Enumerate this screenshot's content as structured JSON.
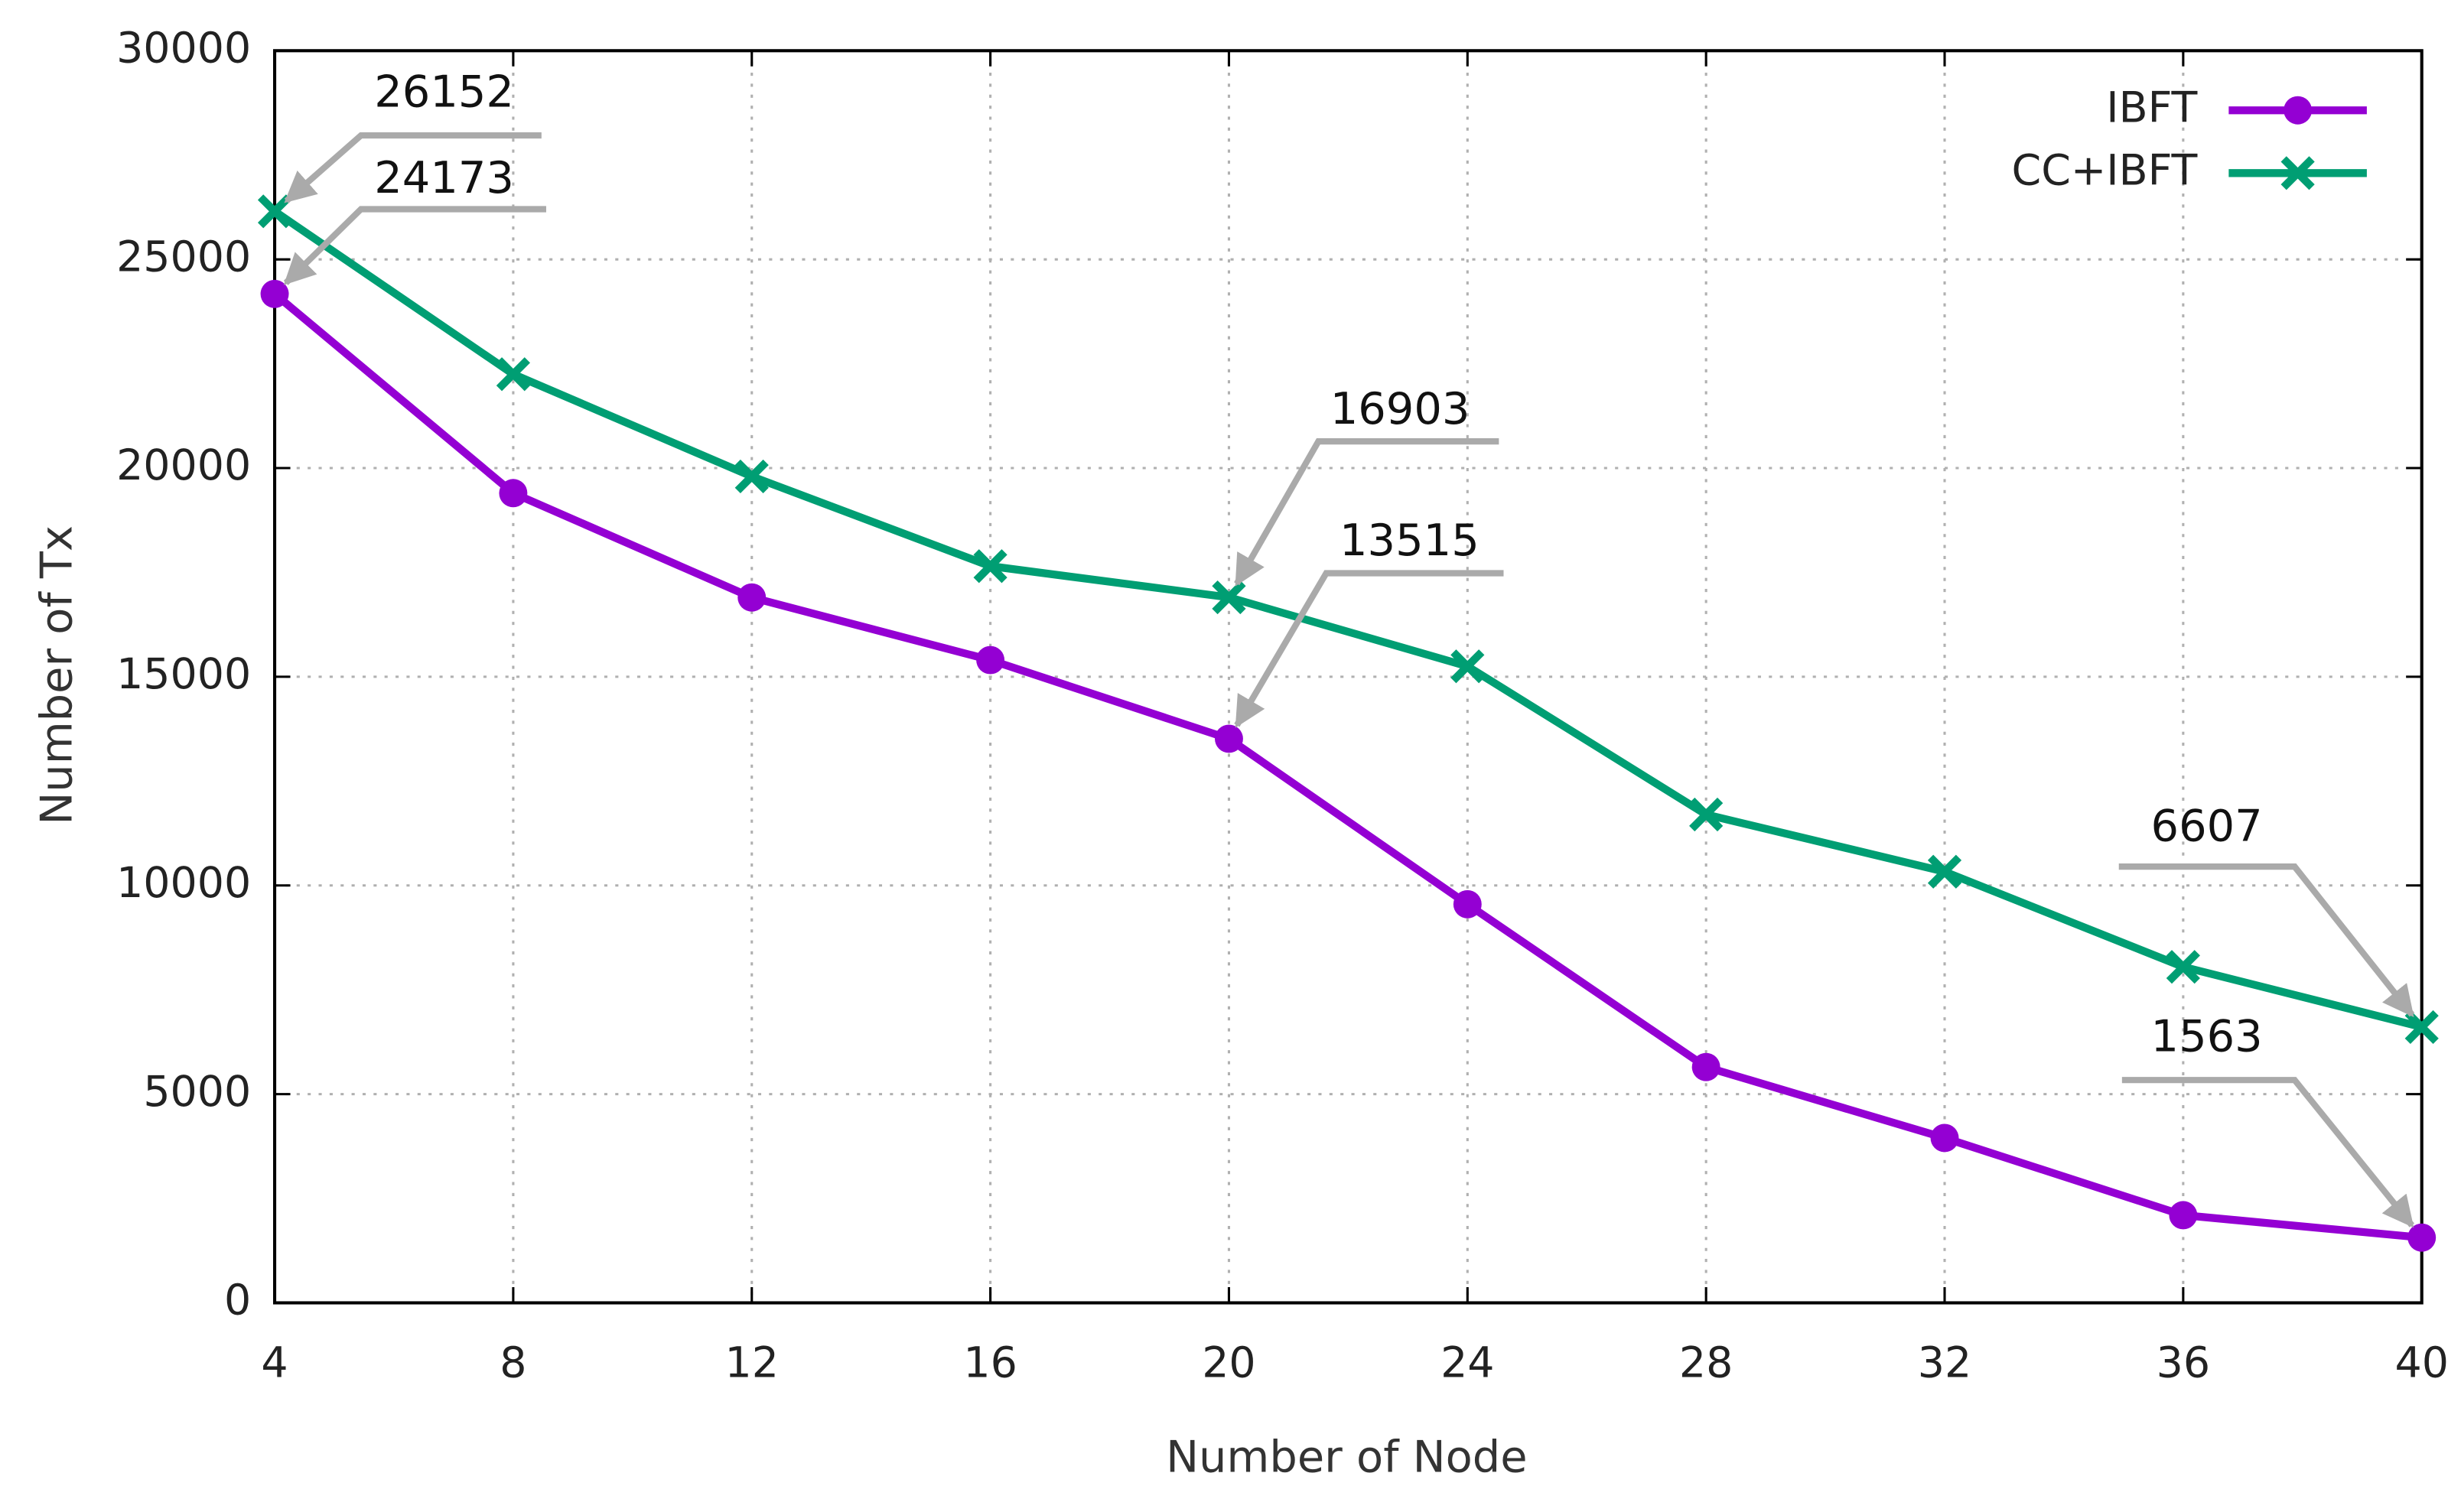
{
  "chart_data": {
    "type": "line",
    "x_label": "Number of Node",
    "y_label": "Number of Tx",
    "x": [
      4,
      8,
      12,
      16,
      20,
      24,
      28,
      32,
      36,
      40
    ],
    "series": [
      {
        "name": "IBFT",
        "color": "#9400d3",
        "marker": "circle",
        "values": [
          24173,
          19400,
          16900,
          15400,
          13515,
          9550,
          5650,
          3950,
          2100,
          1563
        ]
      },
      {
        "name": "CC+IBFT",
        "color": "#009e73",
        "marker": "cross",
        "values": [
          26152,
          22250,
          19800,
          17650,
          16903,
          15250,
          11700,
          10330,
          8050,
          6607
        ]
      }
    ],
    "xlim": [
      4,
      40
    ],
    "xticks": [
      4,
      8,
      12,
      16,
      20,
      24,
      28,
      32,
      36,
      40
    ],
    "ylim": [
      0,
      30000
    ],
    "yticks": [
      0,
      5000,
      10000,
      15000,
      20000,
      25000,
      30000
    ],
    "grid": true,
    "legend": "top-right"
  }
}
